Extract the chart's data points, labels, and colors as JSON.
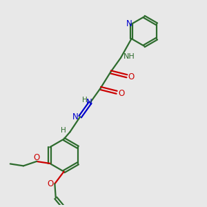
{
  "bg_color": "#e8e8e8",
  "bond_color": "#2d6b2d",
  "nitrogen_color": "#0000cc",
  "oxygen_color": "#cc0000",
  "line_width": 1.6,
  "fig_width": 3.0,
  "fig_height": 3.0,
  "dpi": 100,
  "xlim": [
    0,
    10
  ],
  "ylim": [
    0,
    10
  ]
}
